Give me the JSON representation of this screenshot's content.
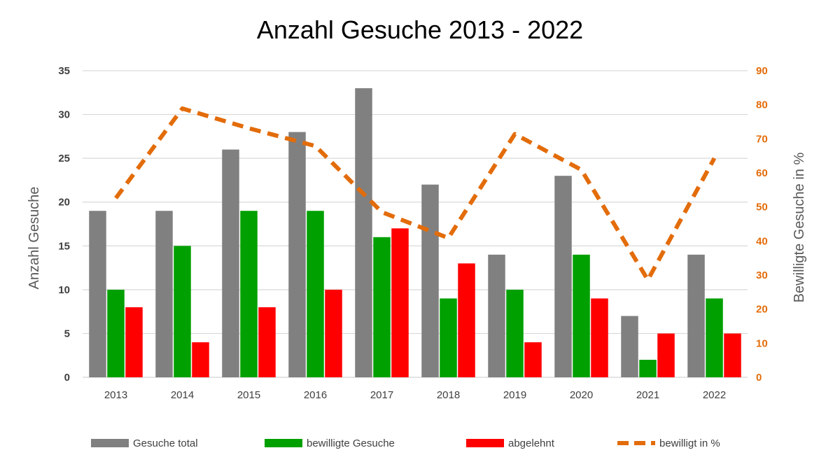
{
  "chart_data": {
    "type": "bar",
    "title": "Anzahl Gesuche 2013 - 2022",
    "ylabel": "Anzahl Gesuche",
    "y2label": "Bewilligte Gesuche in %",
    "ylim": [
      0,
      35
    ],
    "y2lim": [
      0,
      90
    ],
    "yticks": [
      0,
      5,
      10,
      15,
      20,
      25,
      30,
      35
    ],
    "y2ticks": [
      0,
      10,
      20,
      30,
      40,
      50,
      60,
      70,
      80,
      90
    ],
    "grid": true,
    "legend_position": "bottom",
    "categories": [
      "2013",
      "2014",
      "2015",
      "2016",
      "2017",
      "2018",
      "2019",
      "2020",
      "2021",
      "2022"
    ],
    "series": [
      {
        "name": "Gesuche total",
        "type": "bar",
        "axis": "left",
        "color": "#808080",
        "values": [
          19,
          19,
          26,
          28,
          33,
          22,
          14,
          23,
          7,
          14
        ]
      },
      {
        "name": "bewilligte Gesuche",
        "type": "bar",
        "axis": "left",
        "color": "#00A000",
        "values": [
          10,
          15,
          19,
          19,
          16,
          9,
          10,
          14,
          2,
          9
        ]
      },
      {
        "name": "abgelehnt",
        "type": "bar",
        "axis": "left",
        "color": "#FF0000",
        "values": [
          8,
          4,
          8,
          10,
          17,
          13,
          4,
          9,
          5,
          5
        ]
      },
      {
        "name": "bewilligt in %",
        "type": "line",
        "style": "dashed",
        "axis": "right",
        "color": "#E36C0A",
        "values": [
          52.6,
          78.9,
          73.1,
          67.9,
          48.5,
          40.9,
          71.4,
          60.9,
          28.6,
          64.3
        ]
      }
    ]
  }
}
